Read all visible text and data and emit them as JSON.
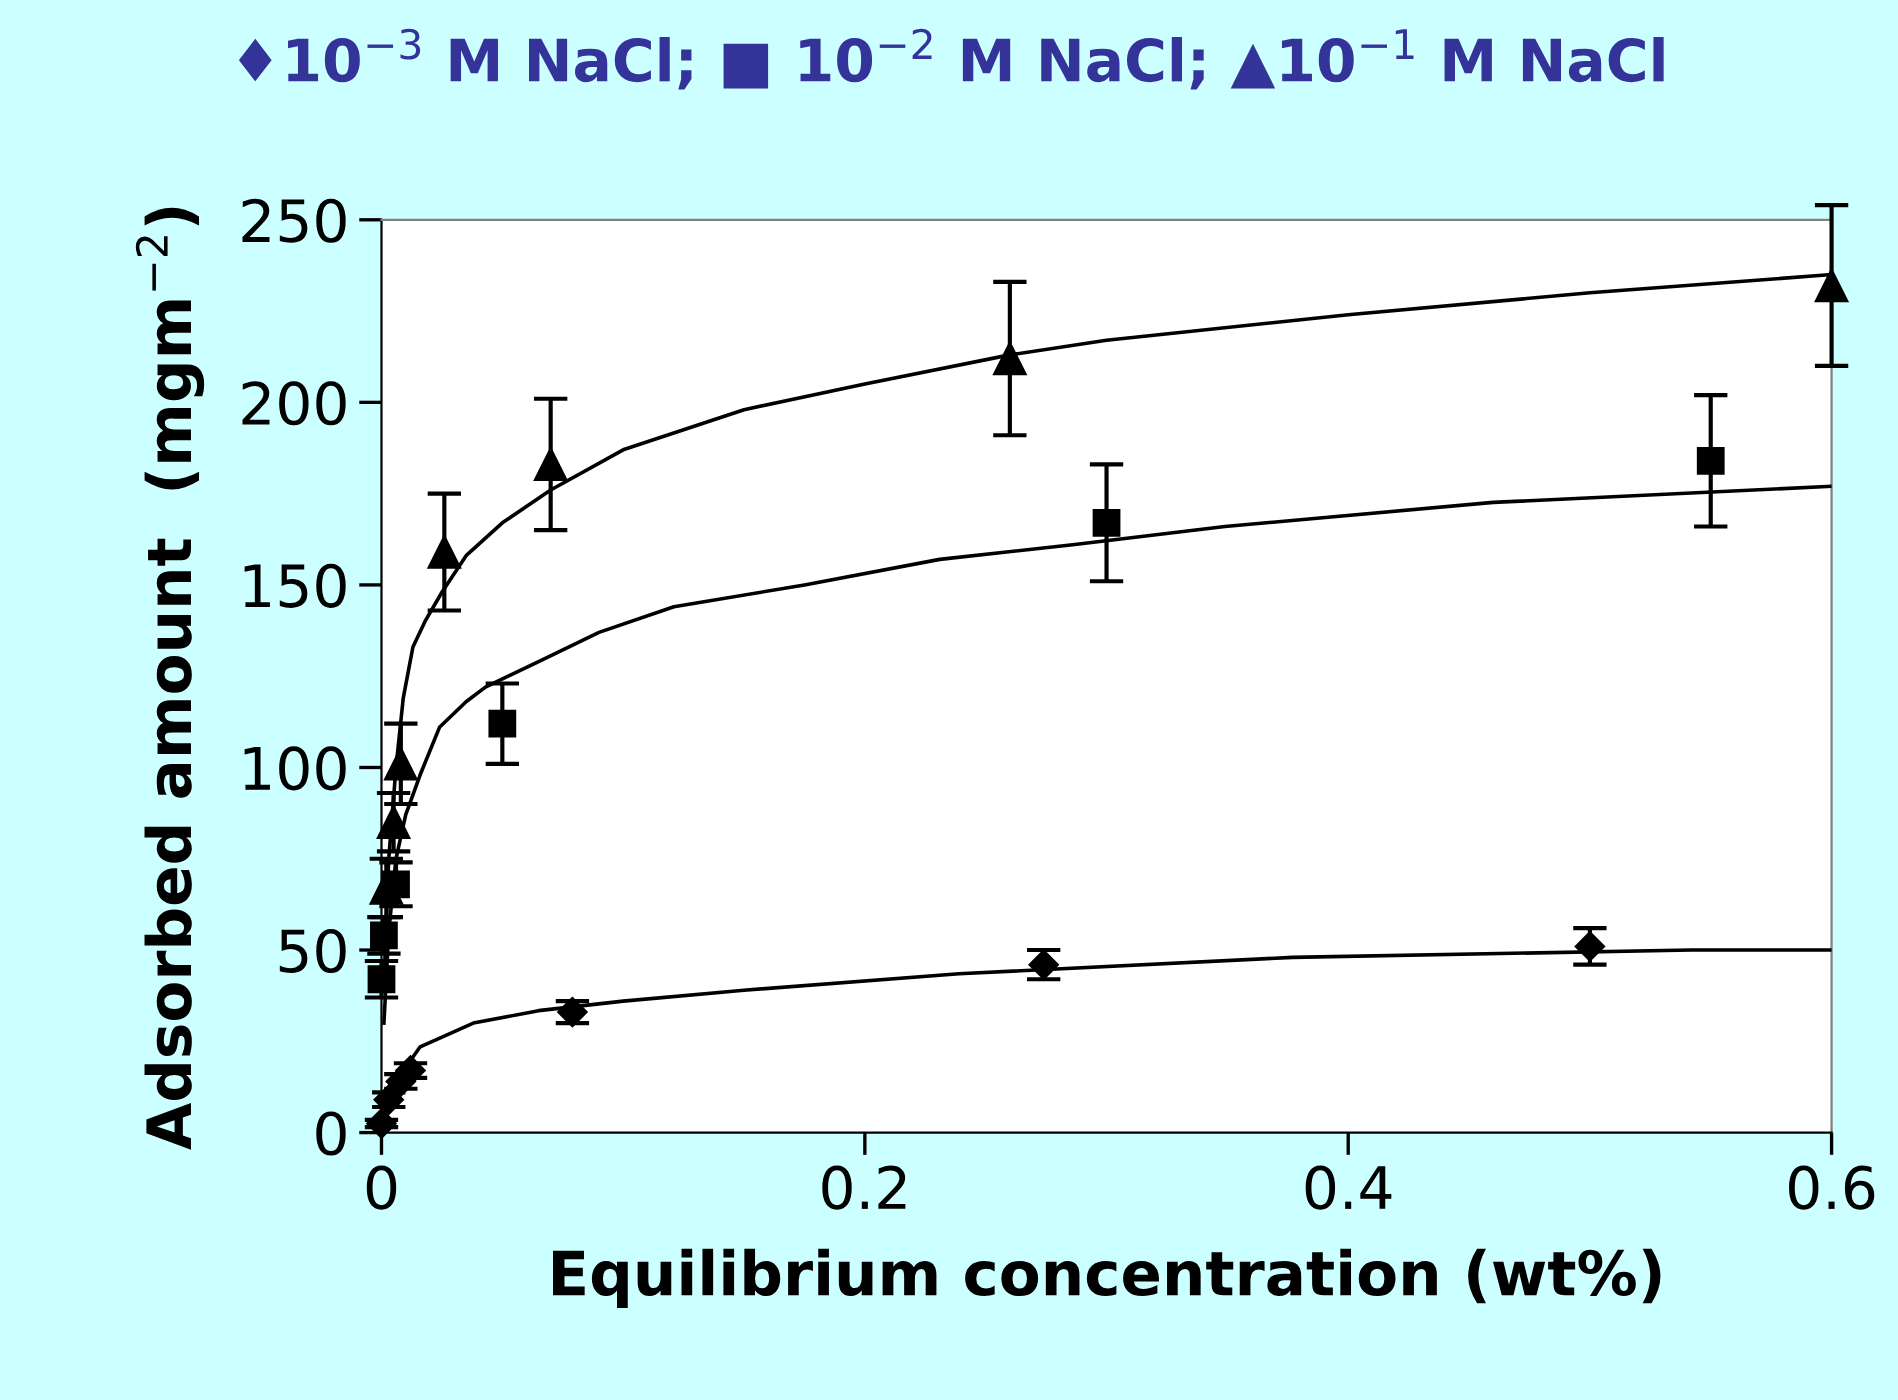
{
  "chart_data": {
    "type": "scatter",
    "title": "♦10$^{−3}$ M NaCl; ■ 10$^{−2}$ M NaCl; ▲10$^{−1}$ M NaCl",
    "xlabel": "Equilibrium concentration (wt%)",
    "ylabel": "Adsorbed amount  (mgm$^{−2}$)",
    "xlim": [
      0,
      0.6
    ],
    "ylim": [
      0,
      250
    ],
    "xticks": [
      0,
      0.2,
      0.4,
      0.6
    ],
    "yticks": [
      0,
      50,
      100,
      150,
      200,
      250
    ],
    "grid": false,
    "legend": false,
    "series": [
      {
        "color": "#000000",
        "marker": "diamond",
        "x": [
          0.0,
          0.003,
          0.008,
          0.012,
          0.079,
          0.274,
          0.5
        ],
        "values": [
          2.5,
          9,
          14,
          17,
          33,
          46,
          51
        ],
        "errors": [
          1,
          2,
          2,
          2,
          3,
          4,
          5
        ]
      },
      {
        "color": "#000000",
        "marker": "square",
        "x": [
          0.0,
          0.001,
          0.006,
          0.05,
          0.3,
          0.55
        ],
        "values": [
          42,
          54,
          68,
          112,
          167,
          184
        ],
        "errors": [
          5,
          5,
          6,
          11,
          16,
          18
        ]
      },
      {
        "color": "#000000",
        "marker": "triangle",
        "x": [
          0.002,
          0.005,
          0.008,
          0.026,
          0.07,
          0.26,
          0.6
        ],
        "values": [
          67,
          85,
          101,
          159,
          183,
          212,
          232
        ],
        "errors": [
          8,
          8,
          11,
          16,
          18,
          21,
          22
        ]
      },
      {
        "type": "line",
        "color": "#000000",
        "marker": "none",
        "x": [
          0.0,
          0.003,
          0.007,
          0.016,
          0.038,
          0.065,
          0.1,
          0.15,
          0.239,
          0.377,
          0.542,
          0.6
        ],
        "values": [
          2,
          9,
          15,
          23.5,
          30,
          33.4,
          36,
          39,
          43.5,
          48,
          50,
          50
        ]
      },
      {
        "type": "line",
        "color": "#000000",
        "marker": "none",
        "x": [
          0.001,
          0.003,
          0.006,
          0.01,
          0.016,
          0.024,
          0.035,
          0.043,
          0.065,
          0.09,
          0.121,
          0.175,
          0.231,
          0.286,
          0.349,
          0.46,
          0.6
        ],
        "values": [
          30,
          55,
          75,
          87,
          98,
          111,
          118,
          122,
          129,
          137,
          144,
          150,
          157,
          161,
          166,
          172.6,
          177
        ]
      },
      {
        "type": "line",
        "color": "#000000",
        "marker": "none",
        "x": [
          0.001,
          0.003,
          0.006,
          0.009,
          0.013,
          0.018,
          0.025,
          0.035,
          0.05,
          0.07,
          0.1,
          0.15,
          0.2,
          0.26,
          0.3,
          0.4,
          0.5,
          0.6
        ],
        "values": [
          40,
          75,
          100,
          119,
          133,
          140,
          148,
          158,
          167,
          176,
          187,
          198,
          205,
          213,
          217,
          224,
          230,
          235
        ]
      }
    ]
  }
}
